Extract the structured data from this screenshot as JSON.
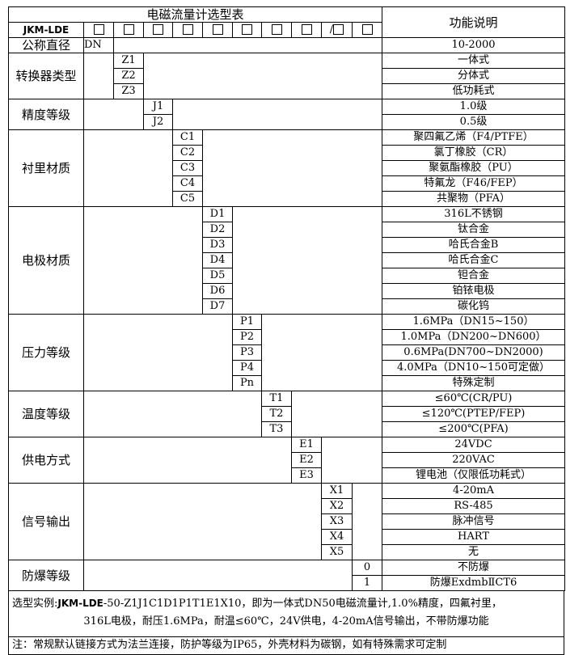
{
  "title": "电磁流量计选型表",
  "function_header": "功能说明",
  "model": "JKM-LDE",
  "header_cells": [
    "□",
    "□",
    "□",
    "□",
    "□",
    "□",
    "□",
    "□",
    "/□",
    "□"
  ],
  "nominal_diameter": {
    "label": "公称直径",
    "code": "DN",
    "function": "10-2000"
  },
  "groups": [
    {
      "label": "转换器类型",
      "col": 2,
      "items": [
        {
          "code": "Z1",
          "function": "一体式"
        },
        {
          "code": "Z2",
          "function": "分体式"
        },
        {
          "code": "Z3",
          "function": "低功耗式"
        }
      ]
    },
    {
      "label": "精度等级",
      "col": 3,
      "items": [
        {
          "code": "J1",
          "function": "1.0级"
        },
        {
          "code": "J2",
          "function": "0.5级"
        }
      ]
    },
    {
      "label": "衬里材质",
      "col": 4,
      "items": [
        {
          "code": "C1",
          "function": "聚四氟乙烯（F4/PTFE）"
        },
        {
          "code": "C2",
          "function": "氯丁橡胶（CR）"
        },
        {
          "code": "C3",
          "function": "聚氨酯橡胶（PU）"
        },
        {
          "code": "C4",
          "function": "特氟龙（F46/FEP）"
        },
        {
          "code": "C5",
          "function": "共聚物（PFA）"
        }
      ]
    },
    {
      "label": "电极材质",
      "col": 5,
      "items": [
        {
          "code": "D1",
          "function": "316L不锈钢"
        },
        {
          "code": "D2",
          "function": "钛合金"
        },
        {
          "code": "D3",
          "function": "哈氏合金B"
        },
        {
          "code": "D4",
          "function": "哈氏合金C"
        },
        {
          "code": "D5",
          "function": "钽合金"
        },
        {
          "code": "D6",
          "function": "铂铱电极"
        },
        {
          "code": "D7",
          "function": "碳化钨"
        }
      ]
    },
    {
      "label": "压力等级",
      "col": 6,
      "items": [
        {
          "code": "P1",
          "function": "1.6MPa（DN15~150）"
        },
        {
          "code": "P2",
          "function": "1.0MPa（DN200~DN600）"
        },
        {
          "code": "P3",
          "function": "0.6MPa(DN700~DN2000)"
        },
        {
          "code": "P4",
          "function": "4.0MPa（DN10~150可定做）"
        },
        {
          "code": "Pn",
          "function": "特殊定制"
        }
      ]
    },
    {
      "label": "温度等级",
      "col": 7,
      "items": [
        {
          "code": "T1",
          "function": "≤60℃(CR/PU)"
        },
        {
          "code": "T2",
          "function": "≤120℃(PTEP/FEP)"
        },
        {
          "code": "T3",
          "function": "≤200℃(PFA)"
        }
      ]
    },
    {
      "label": "供电方式",
      "col": 8,
      "items": [
        {
          "code": "E1",
          "function": "24VDC"
        },
        {
          "code": "E2",
          "function": "220VAC"
        },
        {
          "code": "E3",
          "function": "锂电池（仅限低功耗式）"
        }
      ]
    },
    {
      "label": "信号输出",
      "col": 9,
      "items": [
        {
          "code": "X1",
          "function": "4-20mA"
        },
        {
          "code": "X2",
          "function": "RS-485"
        },
        {
          "code": "X3",
          "function": "脉冲信号"
        },
        {
          "code": "X4",
          "function": "HART"
        },
        {
          "code": "X5",
          "function": "无"
        }
      ]
    },
    {
      "label": "防爆等级",
      "col": 10,
      "items": [
        {
          "code": "0",
          "function": "不防爆"
        },
        {
          "code": "1",
          "function": "防爆ExdmbⅡCT6"
        }
      ]
    }
  ],
  "example": {
    "prefix": "选型实例:",
    "model": "JKM-LDE",
    "line1_rest": "-50-Z1J1C1D1P1T1E1X10，即为一体式DN50电磁流量计,1.0%精度，四氟衬里，",
    "line2": "316L电极，耐压1.6MPa，耐温≤60℃，24V供电，4-20mA信号输出，不带防爆功能"
  },
  "note": "注：常规默认链接方式为法兰连接，防护等级为IP65，外壳材料为碳钢，如有特殊需求可定制"
}
